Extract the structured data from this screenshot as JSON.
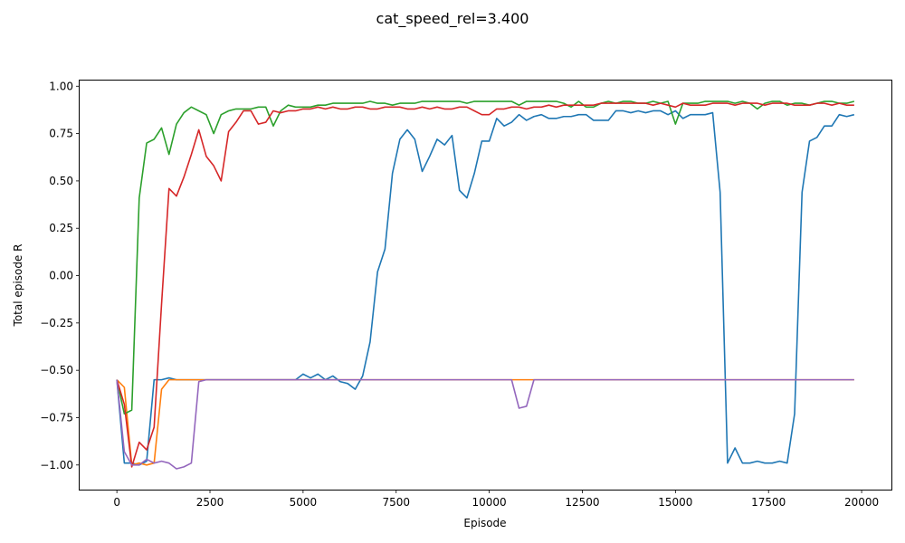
{
  "chart_data": {
    "type": "line",
    "title": "cat_speed_rel=3.400",
    "xlabel": "Episode",
    "ylabel": "Total episode R",
    "xlim": [
      -1000,
      20800
    ],
    "ylim": [
      -1.13,
      1.03
    ],
    "xticks": [
      0,
      2500,
      5000,
      7500,
      10000,
      12500,
      15000,
      17500,
      20000
    ],
    "xtick_labels": [
      "0",
      "2500",
      "5000",
      "7500",
      "10000",
      "12500",
      "15000",
      "17500",
      "20000"
    ],
    "yticks": [
      -1.0,
      -0.75,
      -0.5,
      -0.25,
      0.0,
      0.25,
      0.5,
      0.75,
      1.0
    ],
    "ytick_labels": [
      "−1.00",
      "−0.75",
      "−0.50",
      "−0.25",
      "0.00",
      "0.25",
      "0.50",
      "0.75",
      "1.00"
    ],
    "grid": false,
    "legend": "none",
    "series": [
      {
        "color": "#1f77b4",
        "x": [
          0,
          200,
          400,
          600,
          800,
          1000,
          1200,
          1400,
          1600,
          1800,
          2000,
          2200,
          2400,
          2600,
          2800,
          3000,
          3500,
          4000,
          4500,
          4800,
          5000,
          5200,
          5400,
          5600,
          5800,
          6000,
          6200,
          6400,
          6600,
          6800,
          7000,
          7200,
          7400,
          7600,
          7800,
          8000,
          8200,
          8400,
          8600,
          8800,
          9000,
          9200,
          9400,
          9600,
          9800,
          10000,
          10200,
          10400,
          10600,
          10800,
          11000,
          11200,
          11400,
          11600,
          11800,
          12000,
          12200,
          12400,
          12600,
          12800,
          13000,
          13200,
          13400,
          13600,
          13800,
          14000,
          14200,
          14400,
          14600,
          14800,
          15000,
          15200,
          15400,
          15600,
          15800,
          16000,
          16200,
          16400,
          16600,
          16800,
          17000,
          17200,
          17400,
          17600,
          17800,
          18000,
          18200,
          18400,
          18600,
          18800,
          19000,
          19200,
          19400,
          19600,
          19800
        ],
        "y": [
          -0.55,
          -0.99,
          -0.99,
          -1.0,
          -0.98,
          -0.55,
          -0.55,
          -0.54,
          -0.55,
          -0.55,
          -0.55,
          -0.55,
          -0.55,
          -0.55,
          -0.55,
          -0.55,
          -0.55,
          -0.55,
          -0.55,
          -0.55,
          -0.52,
          -0.54,
          -0.52,
          -0.55,
          -0.53,
          -0.56,
          -0.57,
          -0.6,
          -0.53,
          -0.35,
          0.02,
          0.14,
          0.54,
          0.72,
          0.77,
          0.72,
          0.55,
          0.63,
          0.72,
          0.69,
          0.74,
          0.45,
          0.41,
          0.54,
          0.71,
          0.71,
          0.83,
          0.79,
          0.81,
          0.85,
          0.82,
          0.84,
          0.85,
          0.83,
          0.83,
          0.84,
          0.84,
          0.85,
          0.85,
          0.82,
          0.82,
          0.82,
          0.87,
          0.87,
          0.86,
          0.87,
          0.86,
          0.87,
          0.87,
          0.85,
          0.87,
          0.83,
          0.85,
          0.85,
          0.85,
          0.86,
          0.44,
          -0.99,
          -0.91,
          -0.99,
          -0.99,
          -0.98,
          -0.99,
          -0.99,
          -0.98,
          -0.99,
          -0.73,
          0.44,
          0.71,
          0.73,
          0.79,
          0.79,
          0.85,
          0.84,
          0.85
        ]
      },
      {
        "color": "#ff7f0e",
        "x": [
          0,
          200,
          400,
          600,
          800,
          1000,
          1200,
          1400,
          1600,
          1800,
          2000,
          2500,
          3000,
          4000,
          5000,
          6000,
          7000,
          8000,
          9000,
          10000,
          11000,
          12000,
          13000,
          14000,
          15000,
          16000,
          17000,
          18000,
          19000,
          19800
        ],
        "y": [
          -0.55,
          -0.59,
          -1.0,
          -0.99,
          -1.0,
          -0.99,
          -0.6,
          -0.55,
          -0.55,
          -0.55,
          -0.55,
          -0.55,
          -0.55,
          -0.55,
          -0.55,
          -0.55,
          -0.55,
          -0.55,
          -0.55,
          -0.55,
          -0.55,
          -0.55,
          -0.55,
          -0.55,
          -0.55,
          -0.55,
          -0.55,
          -0.55,
          -0.55,
          -0.55
        ]
      },
      {
        "color": "#2ca02c",
        "x": [
          0,
          200,
          400,
          600,
          800,
          1000,
          1200,
          1400,
          1600,
          1800,
          2000,
          2200,
          2400,
          2600,
          2800,
          3000,
          3200,
          3400,
          3600,
          3800,
          4000,
          4200,
          4400,
          4600,
          4800,
          5000,
          5200,
          5400,
          5600,
          5800,
          6000,
          6200,
          6400,
          6600,
          6800,
          7000,
          7200,
          7400,
          7600,
          7800,
          8000,
          8200,
          8400,
          8600,
          8800,
          9000,
          9200,
          9400,
          9600,
          9800,
          10000,
          10200,
          10400,
          10600,
          10800,
          11000,
          11200,
          11400,
          11600,
          11800,
          12000,
          12200,
          12400,
          12600,
          12800,
          13000,
          13200,
          13400,
          13600,
          13800,
          14000,
          14200,
          14400,
          14600,
          14800,
          15000,
          15200,
          15400,
          15600,
          15800,
          16000,
          16200,
          16400,
          16600,
          16800,
          17000,
          17200,
          17400,
          17600,
          17800,
          18000,
          18200,
          18400,
          18600,
          18800,
          19000,
          19200,
          19400,
          19600,
          19800
        ],
        "y": [
          -0.55,
          -0.73,
          -0.71,
          0.41,
          0.7,
          0.72,
          0.78,
          0.64,
          0.8,
          0.86,
          0.89,
          0.87,
          0.85,
          0.75,
          0.85,
          0.87,
          0.88,
          0.88,
          0.88,
          0.89,
          0.89,
          0.79,
          0.87,
          0.9,
          0.89,
          0.89,
          0.89,
          0.9,
          0.9,
          0.91,
          0.91,
          0.91,
          0.91,
          0.91,
          0.92,
          0.91,
          0.91,
          0.9,
          0.91,
          0.91,
          0.91,
          0.92,
          0.92,
          0.92,
          0.92,
          0.92,
          0.92,
          0.91,
          0.92,
          0.92,
          0.92,
          0.92,
          0.92,
          0.92,
          0.9,
          0.92,
          0.92,
          0.92,
          0.92,
          0.92,
          0.91,
          0.89,
          0.92,
          0.89,
          0.89,
          0.91,
          0.92,
          0.91,
          0.92,
          0.92,
          0.91,
          0.91,
          0.92,
          0.91,
          0.92,
          0.8,
          0.91,
          0.91,
          0.91,
          0.92,
          0.92,
          0.92,
          0.92,
          0.91,
          0.92,
          0.91,
          0.88,
          0.91,
          0.92,
          0.92,
          0.9,
          0.91,
          0.91,
          0.9,
          0.91,
          0.92,
          0.92,
          0.91,
          0.91,
          0.92
        ]
      },
      {
        "color": "#d62728",
        "x": [
          0,
          200,
          400,
          600,
          800,
          1000,
          1200,
          1400,
          1600,
          1800,
          2000,
          2200,
          2400,
          2600,
          2800,
          3000,
          3200,
          3400,
          3600,
          3800,
          4000,
          4200,
          4400,
          4600,
          4800,
          5000,
          5200,
          5400,
          5600,
          5800,
          6000,
          6200,
          6400,
          6600,
          6800,
          7000,
          7200,
          7400,
          7600,
          7800,
          8000,
          8200,
          8400,
          8600,
          8800,
          9000,
          9200,
          9400,
          9600,
          9800,
          10000,
          10200,
          10400,
          10600,
          10800,
          11000,
          11200,
          11400,
          11600,
          11800,
          12000,
          12200,
          12400,
          12600,
          12800,
          13000,
          13200,
          13400,
          13600,
          13800,
          14000,
          14200,
          14400,
          14600,
          14800,
          15000,
          15200,
          15400,
          15600,
          15800,
          16000,
          16200,
          16400,
          16600,
          16800,
          17000,
          17200,
          17400,
          17600,
          17800,
          18000,
          18200,
          18400,
          18600,
          18800,
          19000,
          19200,
          19400,
          19600,
          19800
        ],
        "y": [
          -0.55,
          -0.68,
          -1.01,
          -0.88,
          -0.92,
          -0.8,
          -0.15,
          0.46,
          0.42,
          0.52,
          0.64,
          0.77,
          0.63,
          0.58,
          0.5,
          0.76,
          0.81,
          0.87,
          0.87,
          0.8,
          0.81,
          0.87,
          0.86,
          0.87,
          0.87,
          0.88,
          0.88,
          0.89,
          0.88,
          0.89,
          0.88,
          0.88,
          0.89,
          0.89,
          0.88,
          0.88,
          0.89,
          0.89,
          0.89,
          0.88,
          0.88,
          0.89,
          0.88,
          0.89,
          0.88,
          0.88,
          0.89,
          0.89,
          0.87,
          0.85,
          0.85,
          0.88,
          0.88,
          0.89,
          0.89,
          0.88,
          0.89,
          0.89,
          0.9,
          0.89,
          0.9,
          0.9,
          0.9,
          0.9,
          0.9,
          0.91,
          0.91,
          0.91,
          0.91,
          0.91,
          0.91,
          0.91,
          0.9,
          0.91,
          0.9,
          0.89,
          0.91,
          0.9,
          0.9,
          0.9,
          0.91,
          0.91,
          0.91,
          0.9,
          0.91,
          0.91,
          0.91,
          0.9,
          0.91,
          0.91,
          0.91,
          0.9,
          0.9,
          0.9,
          0.91,
          0.91,
          0.9,
          0.91,
          0.9,
          0.9
        ]
      },
      {
        "color": "#9467bd",
        "x": [
          0,
          200,
          400,
          600,
          800,
          1000,
          1200,
          1400,
          1600,
          1800,
          2000,
          2200,
          2400,
          3000,
          4000,
          5000,
          6000,
          7000,
          8000,
          9000,
          10000,
          10400,
          10600,
          10800,
          11000,
          11200,
          11400,
          12000,
          13000,
          14000,
          15000,
          16000,
          17000,
          18000,
          19000,
          19800
        ],
        "y": [
          -0.55,
          -0.93,
          -1.0,
          -1.0,
          -0.97,
          -0.99,
          -0.98,
          -0.99,
          -1.02,
          -1.01,
          -0.99,
          -0.56,
          -0.55,
          -0.55,
          -0.55,
          -0.55,
          -0.55,
          -0.55,
          -0.55,
          -0.55,
          -0.55,
          -0.55,
          -0.55,
          -0.7,
          -0.69,
          -0.55,
          -0.55,
          -0.55,
          -0.55,
          -0.55,
          -0.55,
          -0.55,
          -0.55,
          -0.55,
          -0.55,
          -0.55
        ]
      }
    ]
  }
}
